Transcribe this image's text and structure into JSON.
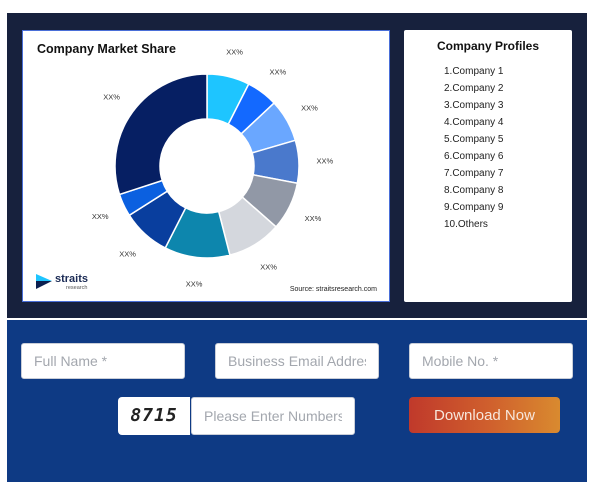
{
  "chart_data": {
    "type": "pie",
    "title": "Company Market Share",
    "categories": [
      "1.Company 1",
      "2.Company 2",
      "3.Company 3",
      "4.Company 4",
      "5.Company 5",
      "6.Company 6",
      "7.Company 7",
      "8.Company 8",
      "9.Company 9",
      "10.Others"
    ],
    "values": [
      7.5,
      5.5,
      7.5,
      7.5,
      8.5,
      9.5,
      11.5,
      8.5,
      4,
      30
    ],
    "slice_labels": [
      "XX%",
      "XX%",
      "XX%",
      "XX%",
      "XX%",
      "XX%",
      "XX%",
      "XX%",
      "XX%",
      "XX%"
    ],
    "colors": [
      "#1ec5ff",
      "#1369ff",
      "#6aa7ff",
      "#4a79cc",
      "#9198a6",
      "#d4d7dd",
      "#0d86ad",
      "#093e9e",
      "#0b60e0",
      "#061f63"
    ],
    "donut": true
  },
  "brand": {
    "name": "straits",
    "sub": "research"
  },
  "source": "Source: straitsresearch.com",
  "profiles": {
    "title": "Company Profiles",
    "items": [
      "1.Company 1",
      "2.Company 2",
      "3.Company 3",
      "4.Company 4",
      "5.Company 5",
      "6.Company 6",
      "7.Company 7",
      "8.Company 8",
      "9.Company 9",
      "10.Others"
    ]
  },
  "form": {
    "full_name_placeholder": "Full Name *",
    "email_placeholder": "Business Email Address *",
    "mobile_placeholder": "Mobile No. *",
    "captcha_code": "8715",
    "captcha_placeholder": "Please Enter Numbers",
    "download_label": "Download Now"
  },
  "colors": {
    "dark_panel": "#17213d",
    "form_panel": "#0e3a84",
    "button_start": "#c0392b",
    "button_end": "#d98a2f"
  }
}
